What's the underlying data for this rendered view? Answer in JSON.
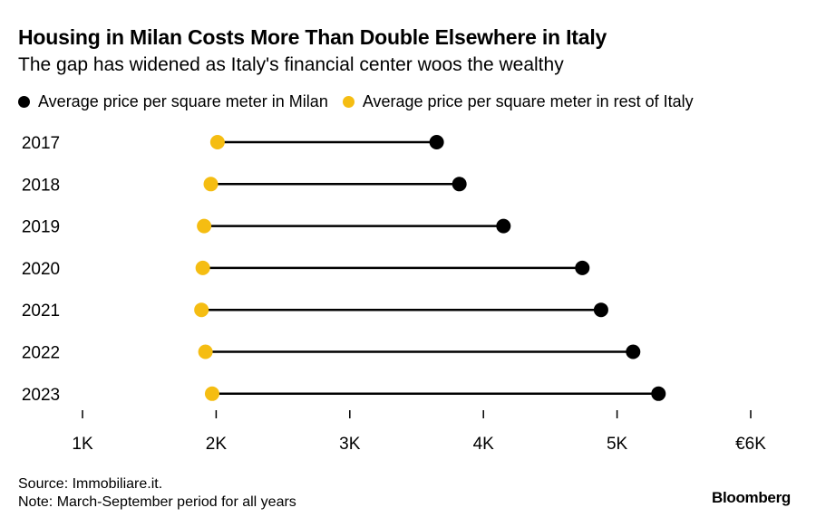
{
  "title": "Housing in Milan Costs More Than Double Elsewhere in Italy",
  "subtitle": "The gap has widened as Italy's financial center woos the wealthy",
  "source": "Source: Immobiliare.it.",
  "note": "Note: March-September period for all years",
  "brand": "Bloomberg",
  "colors": {
    "milan": "#000000",
    "rest": "#f5bd12",
    "line": "#000000"
  },
  "chart_data": {
    "type": "dumbbell",
    "title": "Housing in Milan Costs More Than Double Elsewhere in Italy",
    "subtitle": "The gap has widened as Italy's financial center woos the wealthy",
    "series": [
      {
        "name": "Average price per square meter in Milan",
        "values": [
          3650,
          3820,
          4150,
          4740,
          4880,
          5120,
          5310
        ]
      },
      {
        "name": "Average price per square meter in rest of Italy",
        "values": [
          2010,
          1960,
          1910,
          1900,
          1890,
          1920,
          1970
        ]
      }
    ],
    "categories": [
      "2017",
      "2018",
      "2019",
      "2020",
      "2021",
      "2022",
      "2023"
    ],
    "xlim": [
      1000,
      6000
    ],
    "xticks": [
      1000,
      2000,
      3000,
      4000,
      5000,
      6000
    ],
    "xtick_labels": [
      "1K",
      "2K",
      "3K",
      "4K",
      "5K",
      "€6K"
    ],
    "xlabel": "",
    "ylabel": ""
  }
}
